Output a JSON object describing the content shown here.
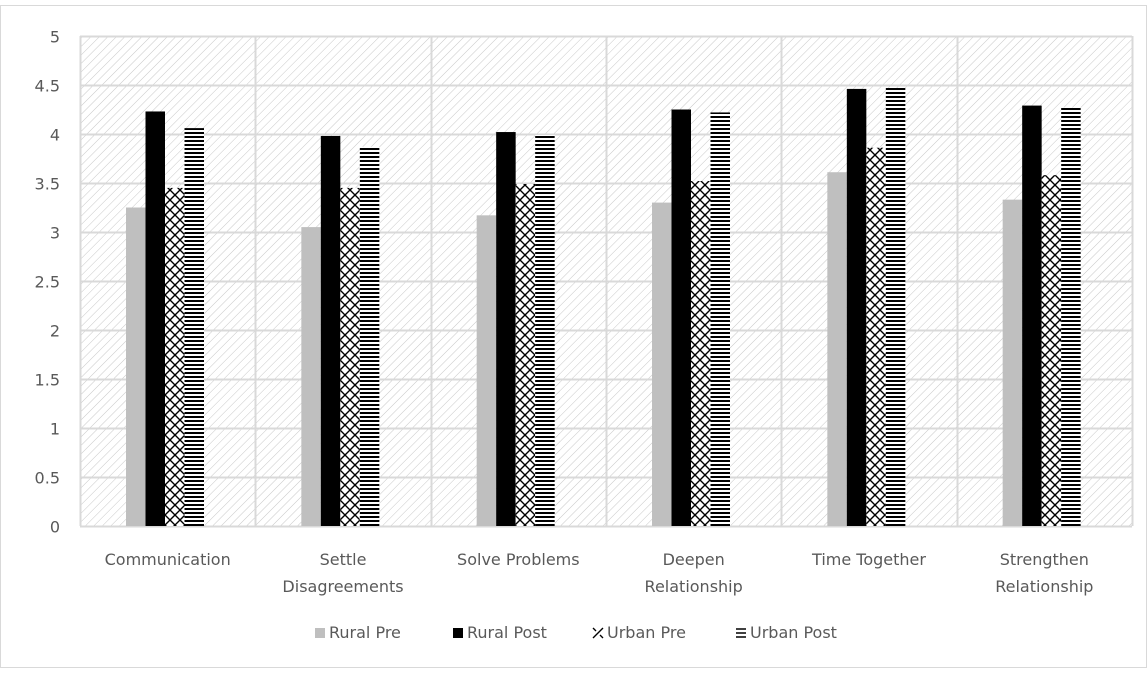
{
  "chart_data": {
    "type": "bar",
    "categories": [
      [
        "Communication"
      ],
      [
        "Settle",
        "Disagreements"
      ],
      [
        "Solve Problems"
      ],
      [
        "Deepen",
        "Relationship"
      ],
      [
        "Time Together"
      ],
      [
        "Strengthen",
        "Relationship"
      ]
    ],
    "series": [
      {
        "name": "Rural Pre",
        "values": [
          3.25,
          3.05,
          3.17,
          3.3,
          3.61,
          3.33
        ],
        "fill": "solid-gray",
        "color": "#bfbfbf"
      },
      {
        "name": "Rural Post",
        "values": [
          4.23,
          3.98,
          4.02,
          4.25,
          4.46,
          4.29
        ],
        "fill": "solid-black",
        "color": "#000000"
      },
      {
        "name": "Urban Pre",
        "values": [
          3.45,
          3.45,
          3.49,
          3.52,
          3.86,
          3.58
        ],
        "fill": "crosshatch",
        "color": "#000000"
      },
      {
        "name": "Urban Post",
        "values": [
          4.06,
          3.87,
          3.99,
          4.22,
          4.47,
          4.27
        ],
        "fill": "horizontal-stripes",
        "color": "#000000"
      }
    ],
    "ylim": [
      0,
      5
    ],
    "yticks": [
      "0",
      "0.5",
      "1",
      "1.5",
      "2",
      "2.5",
      "3",
      "3.5",
      "4",
      "4.5",
      "5"
    ],
    "title": "",
    "xlabel": "",
    "ylabel": "",
    "grid": true,
    "plot_background": "diagonal-hatch",
    "legend_position": "bottom"
  }
}
